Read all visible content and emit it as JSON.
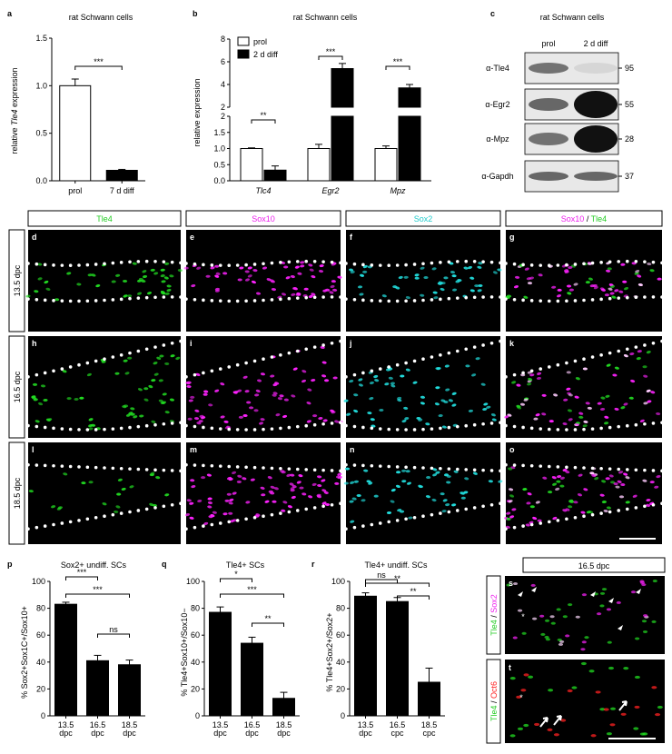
{
  "figure": {
    "panel_letters": {
      "a": "a",
      "b": "b",
      "c": "c",
      "d": "d",
      "e": "e",
      "f": "f",
      "g": "g",
      "h": "h",
      "i": "i",
      "j": "j",
      "k": "k",
      "l": "l",
      "m": "m",
      "n": "n",
      "o": "o",
      "p": "p",
      "q": "q",
      "r": "r",
      "s": "s",
      "t": "t"
    },
    "column_headers": {
      "tle4": "Tle4",
      "sox10": "Sox10",
      "sox2": "Sox2",
      "merge_sox10": "Sox10",
      "merge_sep": " / ",
      "merge_tle4": "Tle4"
    },
    "row_labels": {
      "r1": "13.5 dpc",
      "r2": "16.5 dpc",
      "r3": "18.5 dpc"
    },
    "side_header": "16.5 dpc",
    "side_labels": {
      "s_green": "Tle4",
      "s_sep": " / ",
      "s_mag": "Sox2",
      "t_green": "Tle4",
      "t_sep": " / ",
      "t_red": "Oct6"
    },
    "colors": {
      "green": "#22dd22",
      "magenta": "#ff22ff",
      "cyan": "#22e0e0",
      "red": "#ff2222",
      "bg": "#000000"
    }
  },
  "blot": {
    "title": "rat Schwann cells",
    "col_labels": [
      "prol",
      "2 d diff"
    ],
    "rows": [
      {
        "label": "α-Tle4",
        "mw": "95",
        "left": 0.55,
        "right": 0.08
      },
      {
        "label": "α-Egr2",
        "mw": "55",
        "left": 0.6,
        "right": 1.0
      },
      {
        "label": "α-Mpz",
        "mw": "28",
        "left": 0.55,
        "right": 1.0
      },
      {
        "label": "α-Gapdh",
        "mw": "37",
        "left": 0.6,
        "right": 0.6
      }
    ]
  },
  "chart_data": [
    {
      "panel": "a",
      "type": "bar",
      "title": "rat Schwann cells",
      "ylabel_pre": "relative ",
      "ylabel_it": "Tle4",
      "ylabel_post": " expression",
      "categories": [
        "prol",
        "7 d diff"
      ],
      "values": [
        1.0,
        0.11
      ],
      "errors": [
        0.07,
        0.01
      ],
      "fills": [
        "#ffffff",
        "#000000"
      ],
      "ylim": [
        0,
        1.5
      ],
      "yticks": [
        "0.0",
        "0.5",
        "1.0",
        "1.5"
      ],
      "significance": [
        {
          "pair": [
            0,
            1
          ],
          "label": "***"
        }
      ]
    },
    {
      "panel": "b",
      "type": "bar",
      "title": "rat Schwann cells",
      "ylabel": "relative expression",
      "genes": [
        "Tlc4",
        "Egr2",
        "Mpz"
      ],
      "series": [
        {
          "name": "prol",
          "values": [
            1.0,
            1.0,
            1.0
          ],
          "errors": [
            0.02,
            0.13,
            0.08
          ]
        },
        {
          "name": "2 d diff",
          "values": [
            0.33,
            5.4,
            3.7
          ],
          "errors": [
            0.13,
            0.45,
            0.3
          ]
        }
      ],
      "yticks_lower": [
        "0.0",
        "0.5",
        "1.0",
        "1.5",
        "2"
      ],
      "yticks_upper": [
        "2",
        "4",
        "6",
        "8"
      ],
      "ylim_lower": [
        0,
        2
      ],
      "ylim_upper": [
        2,
        8
      ],
      "significance": [
        "**",
        "***",
        "***"
      ]
    },
    {
      "panel": "p",
      "type": "bar",
      "title": "Sox2+ undiff. SCs",
      "ylabel": "% Sox2+Sox1C+/Sox10+",
      "categories": [
        [
          "13.5",
          "dpc"
        ],
        [
          "16.5",
          "dpc"
        ],
        [
          "18.5",
          "dpc"
        ]
      ],
      "values": [
        83,
        41,
        38
      ],
      "errors": [
        1.5,
        4,
        3.5
      ],
      "ylim": [
        0,
        100
      ],
      "yticks": [
        "0",
        "20",
        "40",
        "60",
        "80",
        "100"
      ],
      "significance": [
        {
          "pair": [
            0,
            1
          ],
          "label": "***"
        },
        {
          "pair": [
            0,
            2
          ],
          "label": "***"
        },
        {
          "pair": [
            1,
            2
          ],
          "label": "ns"
        }
      ]
    },
    {
      "panel": "q",
      "type": "bar",
      "title": "Tle4+ SCs",
      "ylabel": "% Tle4+Sox10+/Sox10−",
      "categories": [
        [
          "13.5",
          "dpc"
        ],
        [
          "16.5",
          "dpc"
        ],
        [
          "18.5",
          "dpc"
        ]
      ],
      "values": [
        77,
        54,
        13
      ],
      "errors": [
        4,
        4.5,
        4.5
      ],
      "ylim": [
        0,
        100
      ],
      "yticks": [
        "0",
        "20",
        "40",
        "60",
        "80",
        "100"
      ],
      "significance": [
        {
          "pair": [
            0,
            1
          ],
          "label": "*"
        },
        {
          "pair": [
            0,
            2
          ],
          "label": "***"
        },
        {
          "pair": [
            1,
            2
          ],
          "label": "**"
        }
      ]
    },
    {
      "panel": "r",
      "type": "bar",
      "title": "Tle4+ undiff. SCs",
      "ylabel": "% Tle4+Sox2+/Sox2+",
      "categories": [
        [
          "13.5",
          "dpc"
        ],
        [
          "16.5",
          "cpc"
        ],
        [
          "18.5",
          "cpc"
        ]
      ],
      "values": [
        89,
        85,
        25
      ],
      "errors": [
        2.5,
        3,
        10.5
      ],
      "ylim": [
        0,
        100
      ],
      "yticks": [
        "0",
        "20",
        "40",
        "60",
        "80",
        "100"
      ],
      "significance": [
        {
          "pair": [
            0,
            1
          ],
          "label": "ns"
        },
        {
          "pair": [
            0,
            2
          ],
          "label": "**"
        },
        {
          "pair": [
            1,
            2
          ],
          "label": "**"
        }
      ]
    }
  ]
}
